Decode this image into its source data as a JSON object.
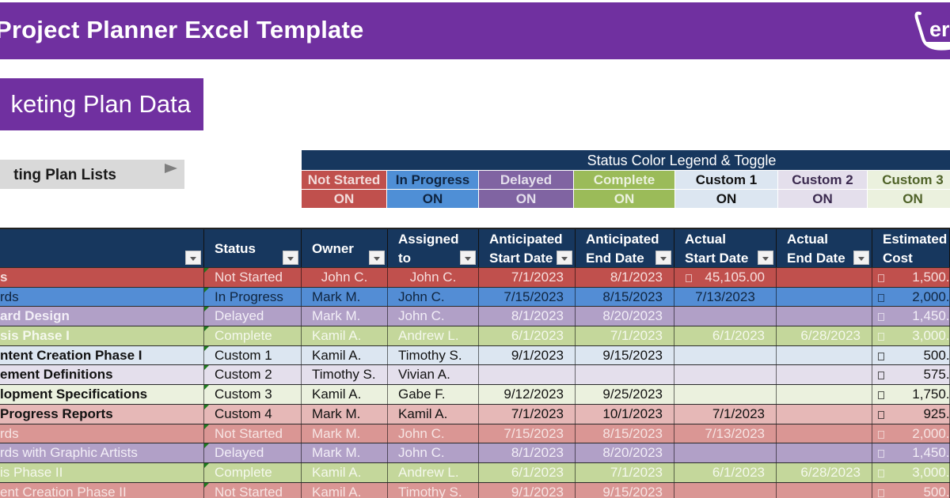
{
  "header": {
    "title": "Project Planner Excel Template",
    "logo_text": "er"
  },
  "section": {
    "title": "keting Plan Data"
  },
  "lists_button": {
    "label": "ting Plan Lists",
    "icon": "play-arrow-icon"
  },
  "legend": {
    "title": "Status Color Legend & Toggle",
    "items": [
      {
        "label": "Not Started",
        "toggle": "ON",
        "bg": "#c0504d",
        "color": "#f2dcdb"
      },
      {
        "label": "In Progress",
        "toggle": "ON",
        "bg": "#4f8fd6",
        "color": "#0f2440"
      },
      {
        "label": "Delayed",
        "toggle": "ON",
        "bg": "#8064a2",
        "color": "#e4dfec"
      },
      {
        "label": "Complete",
        "toggle": "ON",
        "bg": "#9bbb59",
        "color": "#ebf1de"
      },
      {
        "label": "Custom 1",
        "toggle": "ON",
        "bg": "#dce6f1",
        "color": "#111111"
      },
      {
        "label": "Custom 2",
        "toggle": "ON",
        "bg": "#e4dfec",
        "color": "#3b2a4f"
      },
      {
        "label": "Custom 3",
        "toggle": "ON",
        "bg": "#ebf1de",
        "color": "#4f6228"
      }
    ]
  },
  "table": {
    "columns": [
      {
        "label": "",
        "line2": ""
      },
      {
        "label": "Status",
        "line2": ""
      },
      {
        "label": "Owner",
        "line2": ""
      },
      {
        "label": "Assigned",
        "line2": "to"
      },
      {
        "label": "Anticipated",
        "line2": "Start Date"
      },
      {
        "label": "Anticipated",
        "line2": "End Date"
      },
      {
        "label": "Actual",
        "line2": "Start Date"
      },
      {
        "label": "Actual",
        "line2": "End Date"
      },
      {
        "label": "Estimated",
        "line2": "Cost"
      }
    ],
    "rows": [
      {
        "task": "s",
        "status": "Not Started",
        "owner": "John C.",
        "assigned": "John C.",
        "ant_start": "7/1/2023",
        "ant_end": "8/1/2023",
        "act_start": "45,105.00",
        "act_end": "",
        "cost": "1,500.0"
      },
      {
        "task": "rds",
        "status": "In Progress",
        "owner": "Mark M.",
        "assigned": "John C.",
        "ant_start": "7/15/2023",
        "ant_end": "8/15/2023",
        "act_start": "7/13/2023",
        "act_end": "",
        "cost": "2,000.0"
      },
      {
        "task": "ard Design",
        "status": "Delayed",
        "owner": "Mark M.",
        "assigned": "John C.",
        "ant_start": "8/1/2023",
        "ant_end": "8/20/2023",
        "act_start": "",
        "act_end": "",
        "cost": "1,450.0"
      },
      {
        "task": "sis Phase I",
        "status": "Complete",
        "owner": "Kamil A.",
        "assigned": "Andrew L.",
        "ant_start": "6/1/2023",
        "ant_end": "7/1/2023",
        "act_start": "6/1/2023",
        "act_end": "6/28/2023",
        "cost": "3,000.0"
      },
      {
        "task": "ntent Creation Phase I",
        "status": "Custom 1",
        "owner": "Kamil A.",
        "assigned": "Timothy S.",
        "ant_start": "9/1/2023",
        "ant_end": "9/15/2023",
        "act_start": "",
        "act_end": "",
        "cost": "500.0"
      },
      {
        "task": "ement Definitions",
        "status": "Custom 2",
        "owner": "Timothy S.",
        "assigned": "Vivian A.",
        "ant_start": "",
        "ant_end": "",
        "act_start": "",
        "act_end": "",
        "cost": "575.0"
      },
      {
        "task": "lopment Specifications",
        "status": "Custom 3",
        "owner": "Kamil A.",
        "assigned": "Gabe F.",
        "ant_start": "9/12/2023",
        "ant_end": "9/25/2023",
        "act_start": "",
        "act_end": "",
        "cost": "1,750.0"
      },
      {
        "task": " Progress Reports",
        "status": "Custom 4",
        "owner": "Mark M.",
        "assigned": "Kamil A.",
        "ant_start": "7/1/2023",
        "ant_end": "10/1/2023",
        "act_start": "7/1/2023",
        "act_end": "",
        "cost": "925.0"
      },
      {
        "task": "rds",
        "status": "Not Started",
        "owner": "Mark M.",
        "assigned": "John C.",
        "ant_start": "7/15/2023",
        "ant_end": "8/15/2023",
        "act_start": "7/13/2023",
        "act_end": "",
        "cost": "2,000.0"
      },
      {
        "task": "rds with Graphic Artists",
        "status": "Delayed",
        "owner": "Mark M.",
        "assigned": "John C.",
        "ant_start": "8/1/2023",
        "ant_end": "8/20/2023",
        "act_start": "",
        "act_end": "",
        "cost": "1,450.0"
      },
      {
        "task": "is Phase II",
        "status": "Complete",
        "owner": "Kamil A.",
        "assigned": "Andrew L.",
        "ant_start": "6/1/2023",
        "ant_end": "7/1/2023",
        "act_start": "6/1/2023",
        "act_end": "6/28/2023",
        "cost": "3,000.0"
      },
      {
        "task": "ent Creation Phase II",
        "status": "Not Started",
        "owner": "Kamil A.",
        "assigned": "Timothy S.",
        "ant_start": "9/1/2023",
        "ant_end": "9/15/2023",
        "act_start": "",
        "act_end": "",
        "cost": "500.0"
      }
    ]
  }
}
